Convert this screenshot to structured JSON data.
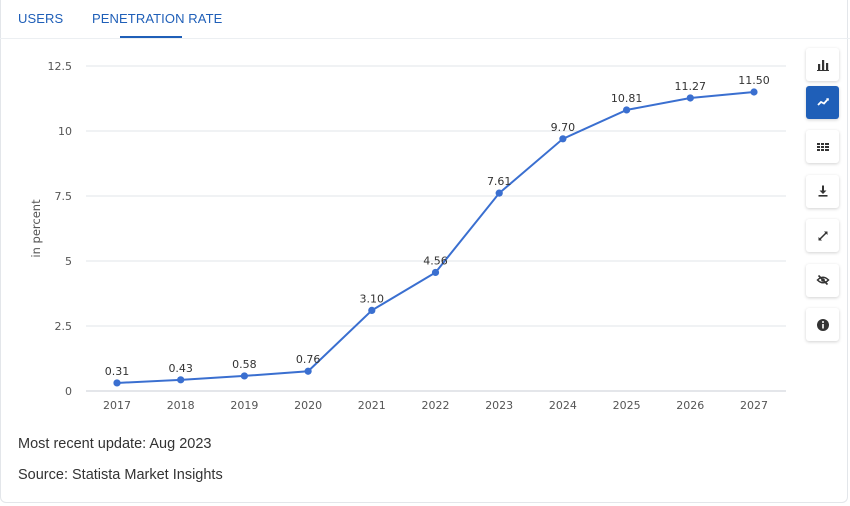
{
  "tabs": [
    {
      "label": "USERS",
      "active": false
    },
    {
      "label": "PENETRATION RATE",
      "active": true
    }
  ],
  "colors": {
    "accent": "#1f5fb8",
    "line": "#3a6fd0",
    "grid": "#e1e4e8"
  },
  "toolbar": {
    "icons": [
      "bar-chart-icon",
      "line-chart-icon",
      "table-icon",
      "download-icon",
      "fullscreen-icon",
      "hide-icon",
      "info-icon"
    ],
    "active": "line-chart-icon"
  },
  "chart_data": {
    "type": "line",
    "title": "",
    "xlabel": "",
    "ylabel": "in percent",
    "categories": [
      "2017",
      "2018",
      "2019",
      "2020",
      "2021",
      "2022",
      "2023",
      "2024",
      "2025",
      "2026",
      "2027"
    ],
    "values": [
      0.31,
      0.43,
      0.58,
      0.76,
      3.1,
      4.56,
      7.61,
      9.7,
      10.81,
      11.27,
      11.5
    ],
    "value_labels": [
      "0.31",
      "0.43",
      "0.58",
      "0.76",
      "3.10",
      "4.56",
      "7.61",
      "9.70",
      "10.81",
      "11.27",
      "11.50"
    ],
    "ylim": [
      0,
      12.5
    ],
    "yticks": [
      0,
      2.5,
      5,
      7.5,
      10,
      12.5
    ],
    "ytick_labels": [
      "0",
      "2.5",
      "5",
      "7.5",
      "10",
      "12.5"
    ],
    "grid": true
  },
  "footer": {
    "update": "Most recent update: Aug 2023",
    "source": "Source: Statista Market Insights"
  }
}
